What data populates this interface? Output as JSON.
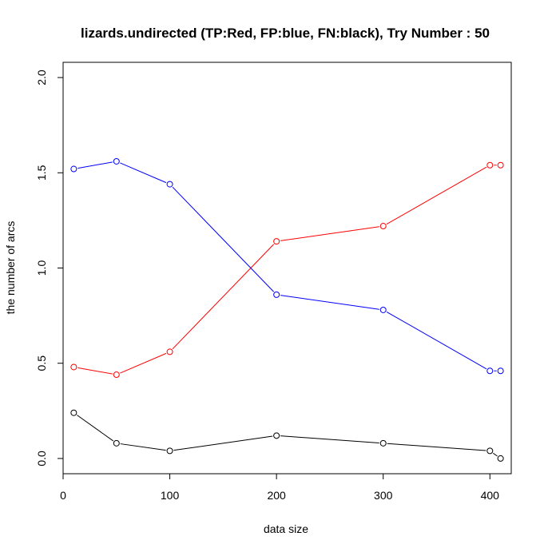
{
  "chart_data": {
    "type": "line",
    "title": "lizards.undirected  (TP:Red, FP:blue, FN:black),  Try Number :  50",
    "xlabel": "data size",
    "ylabel": "the number of arcs",
    "xlim": [
      0,
      420
    ],
    "ylim": [
      -0.08,
      2.08
    ],
    "x_ticks": [
      0,
      100,
      200,
      300,
      400
    ],
    "y_ticks": [
      0.0,
      0.5,
      1.0,
      1.5,
      2.0
    ],
    "x_tick_labels": [
      "0",
      "100",
      "200",
      "300",
      "400"
    ],
    "y_tick_labels": [
      "0.0",
      "0.5",
      "1.0",
      "1.5",
      "2.0"
    ],
    "grid": false,
    "x": [
      10,
      50,
      100,
      200,
      300,
      400,
      410
    ],
    "series": [
      {
        "color": "#ff0000",
        "values": [
          0.48,
          0.44,
          0.56,
          1.14,
          1.22,
          1.54,
          1.54
        ]
      },
      {
        "color": "#0000ff",
        "values": [
          1.52,
          1.56,
          1.44,
          0.86,
          0.78,
          0.46,
          0.46
        ]
      },
      {
        "color": "#000000",
        "values": [
          0.24,
          0.08,
          0.04,
          0.12,
          0.08,
          0.04,
          0.0
        ]
      }
    ]
  }
}
